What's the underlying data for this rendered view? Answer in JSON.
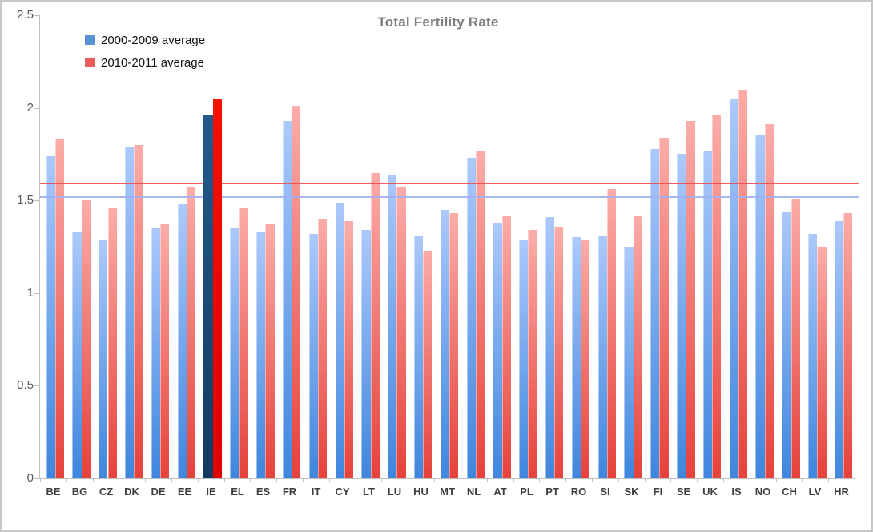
{
  "title": "Total Fertility Rate",
  "chart_data": {
    "type": "bar",
    "categories": [
      "BE",
      "BG",
      "CZ",
      "DK",
      "DE",
      "EE",
      "IE",
      "EL",
      "ES",
      "FR",
      "IT",
      "CY",
      "LT",
      "LU",
      "HU",
      "MT",
      "NL",
      "AT",
      "PL",
      "PT",
      "RO",
      "SI",
      "SK",
      "FI",
      "SE",
      "UK",
      "IS",
      "NO",
      "CH",
      "LV",
      "HR"
    ],
    "series": [
      {
        "name": "2000-2009 average",
        "values": [
          1.74,
          1.33,
          1.29,
          1.79,
          1.35,
          1.48,
          1.96,
          1.35,
          1.33,
          1.93,
          1.32,
          1.49,
          1.34,
          1.64,
          1.31,
          1.45,
          1.73,
          1.38,
          1.29,
          1.41,
          1.3,
          1.31,
          1.25,
          1.78,
          1.75,
          1.77,
          2.05,
          1.85,
          1.44,
          1.32,
          1.39
        ],
        "color_top": "#ACC9FB",
        "color_bottom": "#3F86DE",
        "legend_color": "#5B91D6"
      },
      {
        "name": "2010-2011 average",
        "values": [
          1.83,
          1.5,
          1.46,
          1.8,
          1.37,
          1.57,
          2.05,
          1.46,
          1.37,
          2.01,
          1.4,
          1.39,
          1.65,
          1.57,
          1.23,
          1.43,
          1.77,
          1.42,
          1.34,
          1.36,
          1.29,
          1.56,
          1.42,
          1.84,
          1.93,
          1.96,
          2.1,
          1.91,
          1.51,
          1.25,
          1.43
        ],
        "color_top": "#FCACA8",
        "color_bottom": "#E5423B",
        "legend_color": "#EA5D5B"
      }
    ],
    "highlight": {
      "category": "IE",
      "series_colors": [
        {
          "top": "#225A8C",
          "bottom": "#133A5F"
        },
        {
          "top": "#F51000",
          "bottom": "#E00000"
        }
      ]
    },
    "ref_lines": [
      {
        "value": 1.59,
        "color": "#F24B4B"
      },
      {
        "value": 1.52,
        "color": "#9FB0F4"
      }
    ],
    "ylim": [
      0,
      2.5
    ],
    "yticks": [
      0,
      0.5,
      1,
      1.5,
      2,
      2.5
    ],
    "ytick_labels": [
      "0",
      "0.5",
      "1",
      "1.5",
      "2",
      "2.5"
    ],
    "grid": false,
    "legend_position": "top-left",
    "axis_color": "#BFBFBF"
  }
}
